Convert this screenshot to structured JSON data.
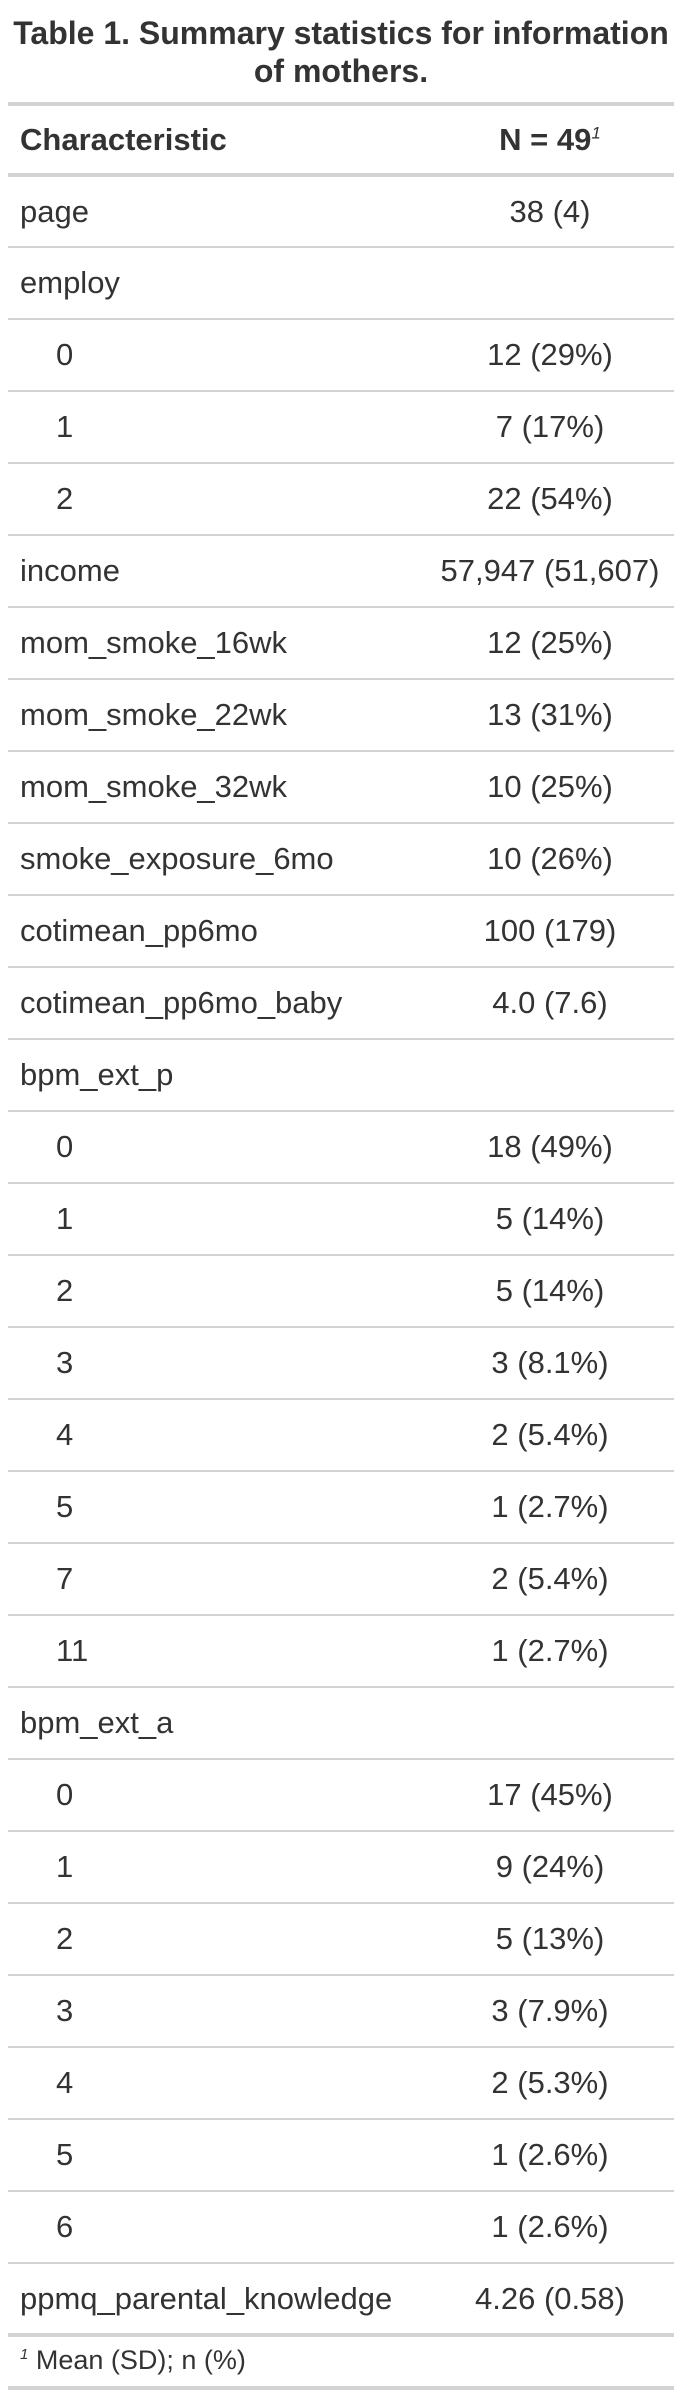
{
  "title": "Table 1. Summary statistics for information of mothers.",
  "header": {
    "characteristic": "Characteristic",
    "n": "N = 49",
    "n_footnote_mark": "1"
  },
  "rows": [
    {
      "label": "page",
      "value": "38 (4)",
      "level": false
    },
    {
      "label": "employ",
      "value": "",
      "level": false
    },
    {
      "label": "0",
      "value": "12 (29%)",
      "level": true
    },
    {
      "label": "1",
      "value": "7 (17%)",
      "level": true
    },
    {
      "label": "2",
      "value": "22 (54%)",
      "level": true
    },
    {
      "label": "income",
      "value": "57,947 (51,607)",
      "level": false
    },
    {
      "label": "mom_smoke_16wk",
      "value": "12 (25%)",
      "level": false
    },
    {
      "label": "mom_smoke_22wk",
      "value": "13 (31%)",
      "level": false
    },
    {
      "label": "mom_smoke_32wk",
      "value": "10 (25%)",
      "level": false
    },
    {
      "label": "smoke_exposure_6mo",
      "value": "10 (26%)",
      "level": false
    },
    {
      "label": "cotimean_pp6mo",
      "value": "100 (179)",
      "level": false
    },
    {
      "label": "cotimean_pp6mo_baby",
      "value": "4.0 (7.6)",
      "level": false
    },
    {
      "label": "bpm_ext_p",
      "value": "",
      "level": false
    },
    {
      "label": "0",
      "value": "18 (49%)",
      "level": true
    },
    {
      "label": "1",
      "value": "5 (14%)",
      "level": true
    },
    {
      "label": "2",
      "value": "5 (14%)",
      "level": true
    },
    {
      "label": "3",
      "value": "3 (8.1%)",
      "level": true
    },
    {
      "label": "4",
      "value": "2 (5.4%)",
      "level": true
    },
    {
      "label": "5",
      "value": "1 (2.7%)",
      "level": true
    },
    {
      "label": "7",
      "value": "2 (5.4%)",
      "level": true
    },
    {
      "label": "11",
      "value": "1 (2.7%)",
      "level": true
    },
    {
      "label": "bpm_ext_a",
      "value": "",
      "level": false
    },
    {
      "label": "0",
      "value": "17 (45%)",
      "level": true
    },
    {
      "label": "1",
      "value": "9 (24%)",
      "level": true
    },
    {
      "label": "2",
      "value": "5 (13%)",
      "level": true
    },
    {
      "label": "3",
      "value": "3 (7.9%)",
      "level": true
    },
    {
      "label": "4",
      "value": "2 (5.3%)",
      "level": true
    },
    {
      "label": "5",
      "value": "1 (2.6%)",
      "level": true
    },
    {
      "label": "6",
      "value": "1 (2.6%)",
      "level": true
    },
    {
      "label": "ppmq_parental_knowledge",
      "value": "4.26 (0.58)",
      "level": false
    }
  ],
  "footnote": {
    "mark": "1",
    "text": "Mean (SD); n (%)"
  }
}
